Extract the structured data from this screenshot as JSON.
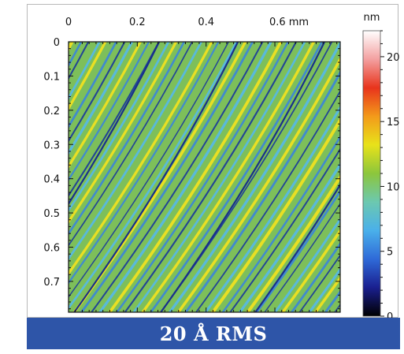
{
  "chart_data": {
    "type": "heatmap",
    "title": "",
    "x_axis": {
      "unit": "mm",
      "ticks": [
        {
          "value": 0,
          "label": "0"
        },
        {
          "value": 0.2,
          "label": "0.2"
        },
        {
          "value": 0.4,
          "label": "0.4"
        },
        {
          "value": 0.6,
          "label": "0.6 mm"
        }
      ],
      "range": [
        0,
        0.79
      ]
    },
    "y_axis": {
      "ticks": [
        {
          "value": 0,
          "label": "0"
        },
        {
          "value": 0.1,
          "label": "0.1"
        },
        {
          "value": 0.2,
          "label": "0.2"
        },
        {
          "value": 0.3,
          "label": "0.3"
        },
        {
          "value": 0.4,
          "label": "0.4"
        },
        {
          "value": 0.5,
          "label": "0.5"
        },
        {
          "value": 0.6,
          "label": "0.6"
        },
        {
          "value": 0.7,
          "label": "0.7"
        }
      ],
      "range": [
        0,
        0.79
      ],
      "inverted": true
    },
    "colorbar": {
      "unit_label": "nm",
      "range": [
        0,
        22
      ],
      "ticks": [
        {
          "value": 0,
          "label": "0"
        },
        {
          "value": 5,
          "label": "5"
        },
        {
          "value": 10,
          "label": "10"
        },
        {
          "value": 15,
          "label": "15"
        },
        {
          "value": 20,
          "label": "20"
        }
      ],
      "colormap": [
        "#000000",
        "#1a1f8f",
        "#2f6ad8",
        "#4ab0ea",
        "#6cc8b0",
        "#8cc63c",
        "#e8e21a",
        "#f39a1a",
        "#e8341c",
        "#f3a0a0",
        "#ffffff"
      ]
    },
    "pattern": {
      "description_free": true,
      "stripe_family": "diagonal",
      "background_color": "#7dbf5a",
      "stripe_colors": [
        "#f2e21e",
        "#3c86d8",
        "#1a3a9a",
        "#56b8e6"
      ]
    }
  },
  "caption": "20 Å RMS"
}
